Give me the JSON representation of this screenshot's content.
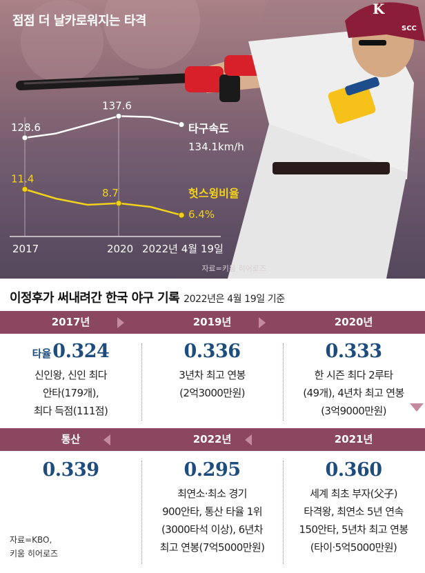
{
  "header": {
    "title": "점점 더 날카로워지는 타격"
  },
  "chart_data": {
    "type": "line",
    "x": [
      "2017",
      "2018",
      "2019",
      "2020",
      "2021",
      "2022년 4월 19일"
    ],
    "xticks": [
      "2017",
      "2020",
      "2022년 4월 19일"
    ],
    "series": [
      {
        "name": "타구속도",
        "unit_label": "134.1km/h",
        "color": "#ffffff",
        "values": [
          128.6,
          130.4,
          134.0,
          137.6,
          137.2,
          134.1
        ],
        "labels": [
          "128.6",
          "",
          "",
          "137.6",
          "",
          ""
        ]
      },
      {
        "name": "헛스윙비율",
        "unit_label": "6.4%",
        "color": "#f2d21a",
        "values": [
          11.4,
          9.6,
          8.4,
          8.7,
          8.0,
          6.4
        ],
        "labels": [
          "11.4",
          "",
          "",
          "8.7",
          "",
          ""
        ]
      }
    ],
    "source": "자료=키움 히어로즈"
  },
  "section": {
    "title": "이정후가 써내려간 한국 야구 기록",
    "subtitle": "2022년은 4월 19일 기준"
  },
  "row1": {
    "labels": [
      "2017년",
      "2019년",
      "2020년"
    ],
    "cells": [
      {
        "prefix": "타율",
        "avg": "0.324",
        "lines": [
          "신인왕, 신인 최다",
          "안타(179개),",
          "최다 득점(111점)"
        ]
      },
      {
        "prefix": "",
        "avg": "0.336",
        "lines": [
          "3년차 최고 연봉",
          "(2억3000만원)"
        ]
      },
      {
        "prefix": "",
        "avg": "0.333",
        "lines": [
          "한 시즌 최다 2루타",
          "(49개), 4년차 최고 연봉",
          "(3억9000만원)"
        ]
      }
    ]
  },
  "row2": {
    "labels": [
      "통산",
      "2022년",
      "2021년"
    ],
    "cells": [
      {
        "prefix": "",
        "avg": "0.339",
        "lines": []
      },
      {
        "prefix": "",
        "avg": "0.295",
        "lines": [
          "최연소·최소 경기",
          "900안타, 통산 타율 1위",
          "(3000타석 이상), 6년차",
          "최고 연봉(7억5000만원)"
        ]
      },
      {
        "prefix": "",
        "avg": "0.360",
        "lines": [
          "세계 최초 부자(父子)",
          "타격왕, 최연소 5년 연속",
          "150안타, 5년차 최고 연봉",
          "(타이·5억5000만원)"
        ]
      }
    ]
  },
  "footer": {
    "source_lines": [
      "자료=KBO,",
      "키움 히어로즈"
    ]
  }
}
